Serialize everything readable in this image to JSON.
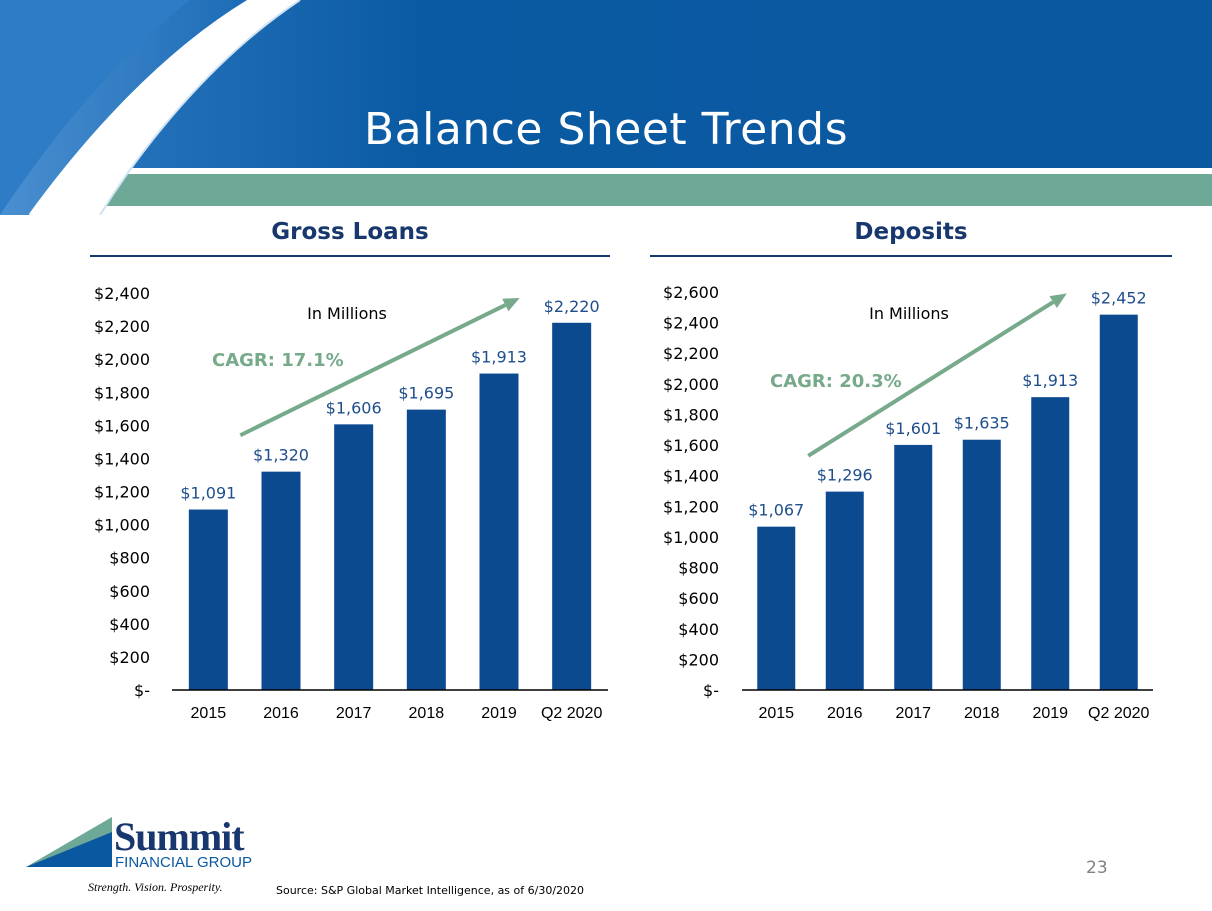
{
  "slide": {
    "title": "Balance Sheet Trends",
    "page_number": "23",
    "source": "Source: S&P Global Market Intelligence, as of 6/30/2020",
    "logo": {
      "name": "Summit",
      "subtitle": "FINANCIAL GROUP",
      "tagline": "Strength. Vision. Prosperity."
    },
    "colors": {
      "banner": "#0a58a0",
      "band": "#6ea897",
      "bar": "#0b4a8f",
      "cagr": "#77a98b",
      "navy": "#17376e"
    }
  },
  "chart_data": [
    {
      "type": "bar",
      "title": "Gross Loans",
      "subtitle": "In Millions",
      "annotation": "CAGR: 17.1%",
      "categories": [
        "2015",
        "2016",
        "2017",
        "2018",
        "2019",
        "Q2 2020"
      ],
      "values": [
        1091,
        1320,
        1606,
        1695,
        1913,
        2220
      ],
      "data_labels": [
        "$1,091",
        "$1,320",
        "$1,606",
        "$1,695",
        "$1,913",
        "$2,220"
      ],
      "ylim": [
        0,
        2400
      ],
      "yticks": [
        0,
        200,
        400,
        600,
        800,
        1000,
        1200,
        1400,
        1600,
        1800,
        2000,
        2200,
        2400
      ],
      "ytick_labels": [
        "$-",
        "$200",
        "$400",
        "$600",
        "$800",
        "$1,000",
        "$1,200",
        "$1,400",
        "$1,600",
        "$1,800",
        "$2,000",
        "$2,200",
        "$2,400"
      ],
      "trend_arrow": {
        "from": {
          "x": "2015",
          "y": 1540
        },
        "to": {
          "x": "Q2 2020",
          "y": 2370
        }
      }
    },
    {
      "type": "bar",
      "title": "Deposits",
      "subtitle": "In Millions",
      "annotation": "CAGR: 20.3%",
      "categories": [
        "2015",
        "2016",
        "2017",
        "2018",
        "2019",
        "Q2 2020"
      ],
      "values": [
        1067,
        1296,
        1601,
        1635,
        1913,
        2452
      ],
      "data_labels": [
        "$1,067",
        "$1,296",
        "$1,601",
        "$1,635",
        "$1,913",
        "$2,452"
      ],
      "ylim": [
        0,
        2600
      ],
      "yticks": [
        0,
        200,
        400,
        600,
        800,
        1000,
        1200,
        1400,
        1600,
        1800,
        2000,
        2200,
        2400,
        2600
      ],
      "ytick_labels": [
        "$-",
        "$200",
        "$400",
        "$600",
        "$800",
        "$1,000",
        "$1,200",
        "$1,400",
        "$1,600",
        "$1,800",
        "$2,000",
        "$2,200",
        "$2,400",
        "$2,600"
      ],
      "trend_arrow": {
        "from": {
          "x": "2015",
          "y": 1530
        },
        "to": {
          "x": "Q2 2020",
          "y": 2590
        }
      }
    }
  ]
}
